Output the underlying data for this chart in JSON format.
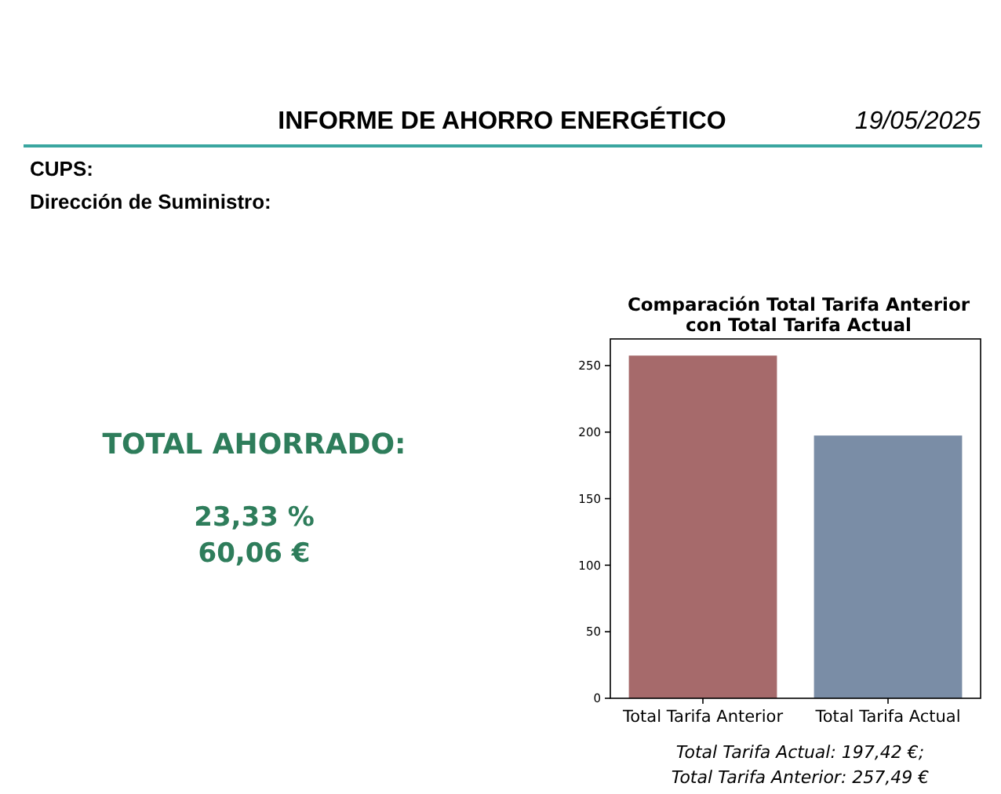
{
  "chart_data": [
    {
      "type": "other",
      "title": "INFORME DE AHORRO ENERGÉTICO",
      "annotations": [
        "19/05/2025",
        "CUPS:",
        "Dirección de Suministro:",
        "TOTAL AHORRADO:",
        "23,33 %",
        "60,06 €"
      ]
    },
    {
      "type": "bar",
      "title": "Comparación Total Tarifa Anterior\ncon Total Tarifa Actual",
      "categories": [
        "Total Tarifa Anterior",
        "Total Tarifa Actual"
      ],
      "values": [
        257.49,
        197.42
      ],
      "colors": [
        "#a66a6b",
        "#7a8da6"
      ],
      "ylim": [
        0,
        270
      ],
      "yticks": [
        0,
        50,
        100,
        150,
        200,
        250
      ],
      "annotations": [
        "Total Tarifa Actual: 197,42 €;",
        "Total Tarifa Anterior: 257,49 €"
      ]
    }
  ]
}
